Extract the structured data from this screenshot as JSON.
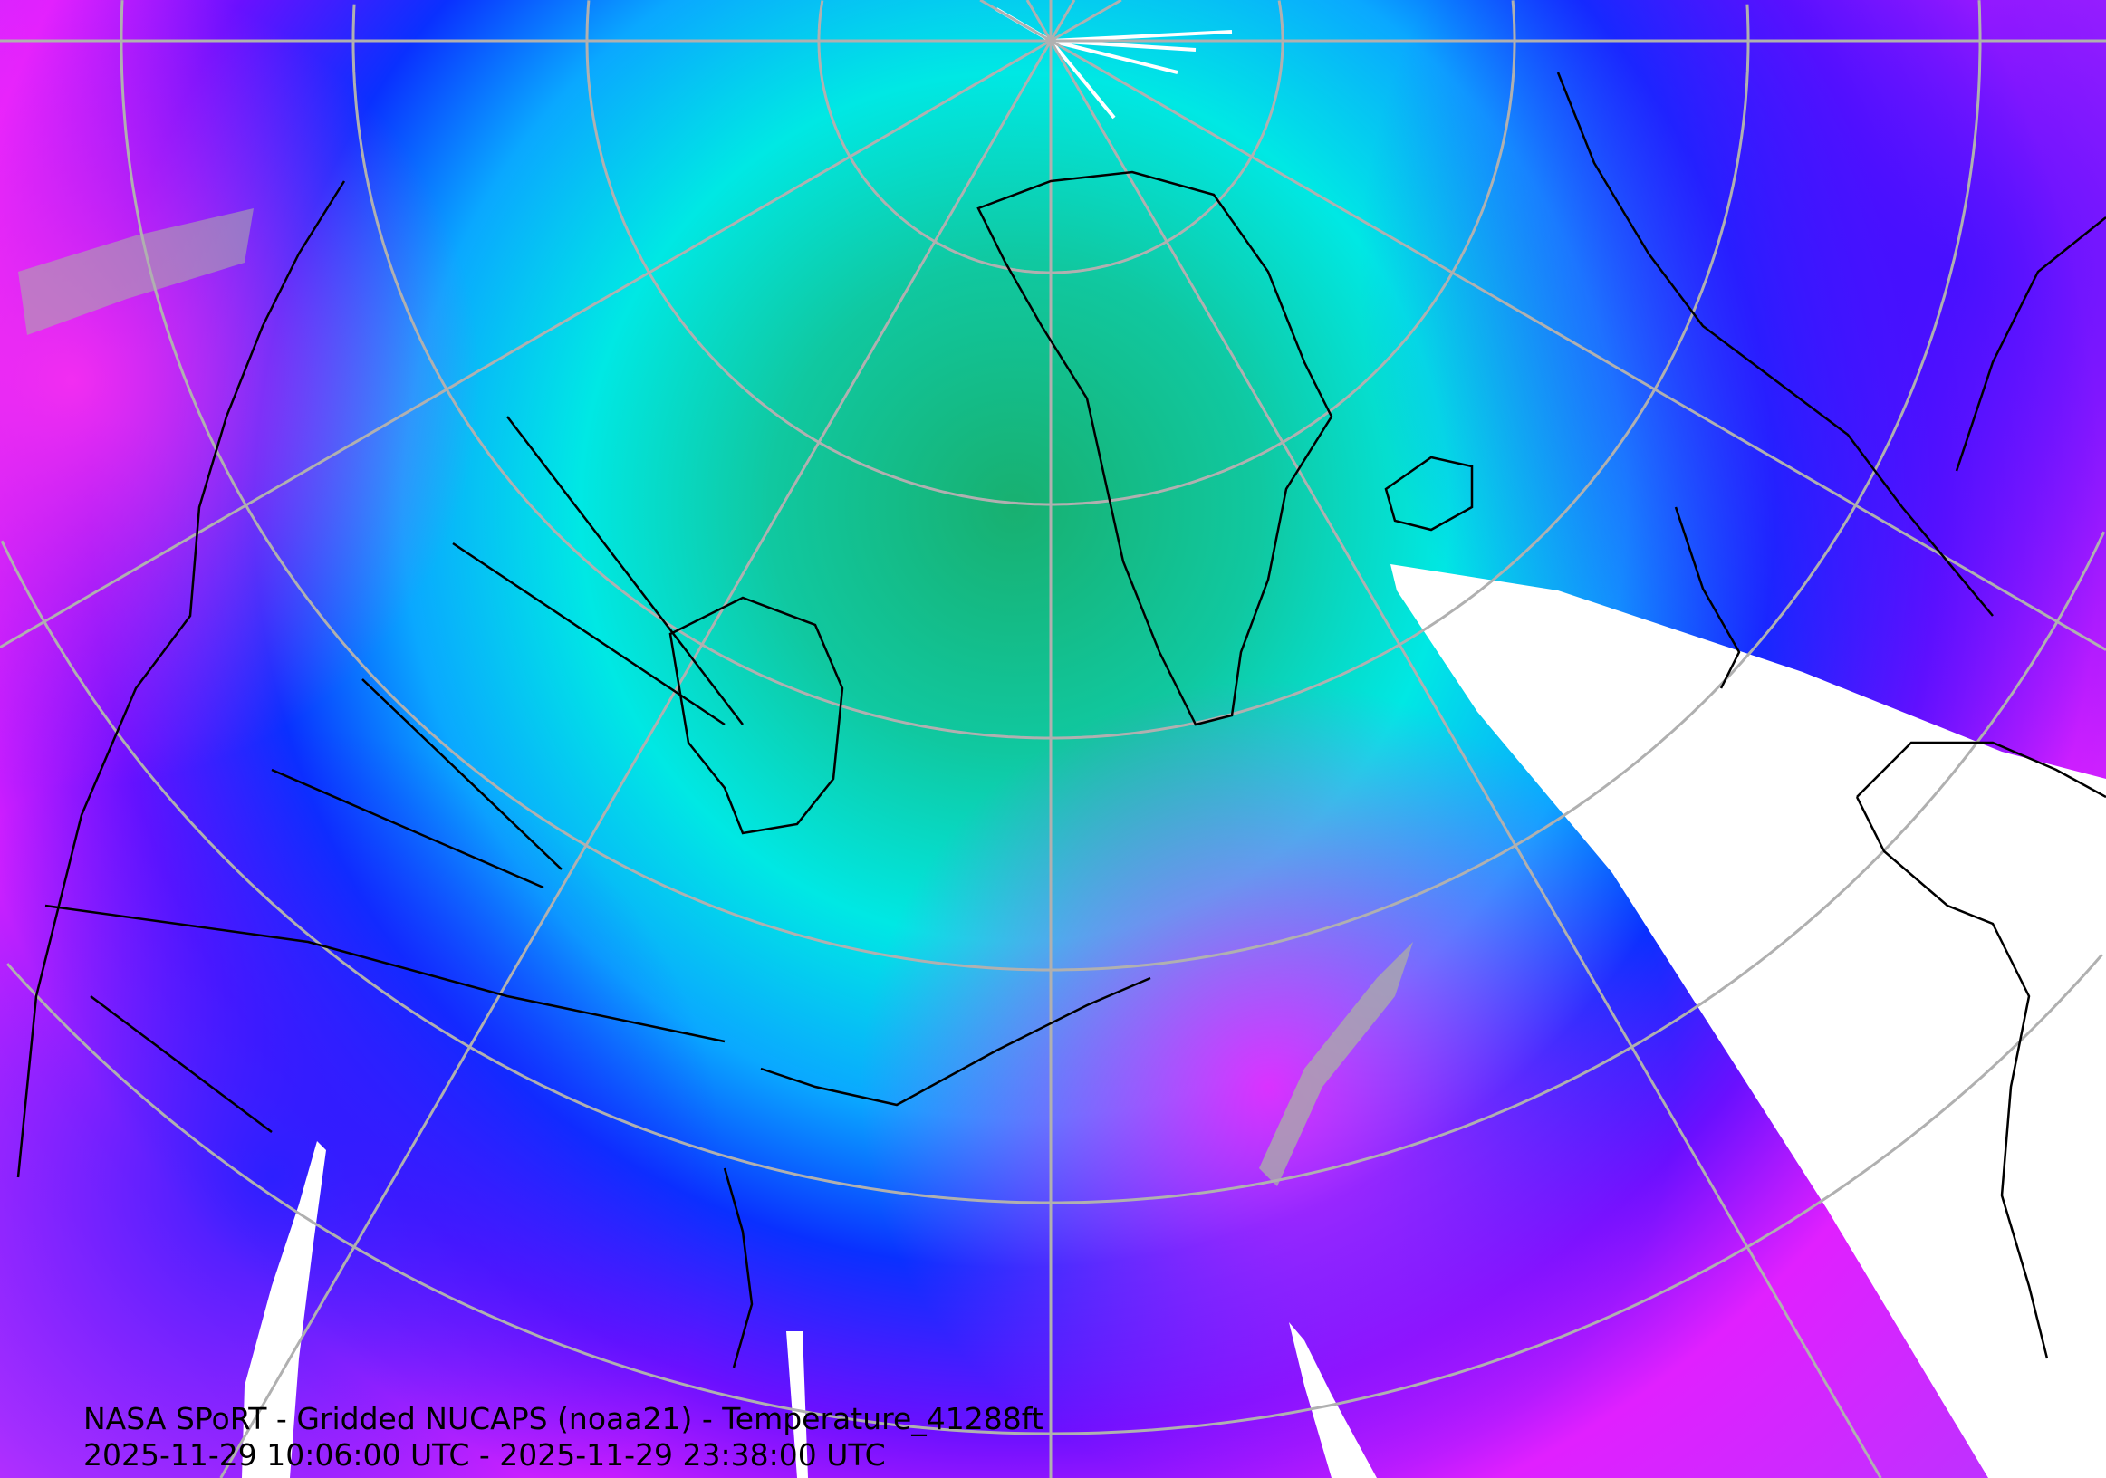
{
  "map": {
    "title": "NASA SPoRT - Gridded NUCAPS (noaa21) - Temperature_41288ft",
    "time_range": "2025-11-29 10:06:00 UTC - 2025-11-29 23:38:00 UTC",
    "projection": "north-polar-stereographic",
    "colors": {
      "coldest": "#1a9a5a",
      "cold": "#00e5e0",
      "mid": "#0a2cff",
      "warm": "#8a00ff",
      "warmest": "#ff20ff",
      "missing": "#aaaaaa",
      "no_data": "#ffffff",
      "graticule": "#b0b0b0",
      "borders": "#000000"
    }
  }
}
